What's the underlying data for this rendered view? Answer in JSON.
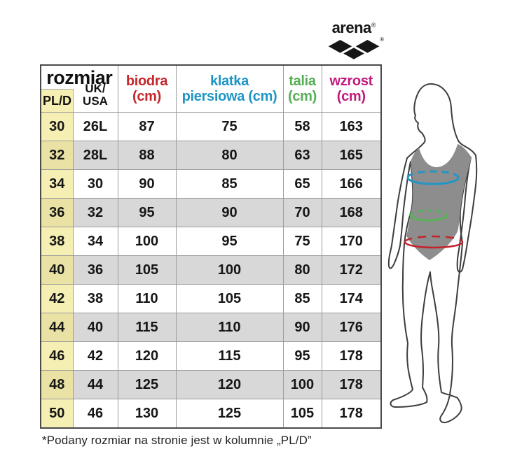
{
  "logo": {
    "brand": "arena",
    "registered": "®"
  },
  "table": {
    "header": {
      "rozmiar": "rozmiar",
      "pl_d": "PL/D",
      "uk_usa_line1": "UK/",
      "uk_usa_line2": "USA",
      "columns": [
        {
          "line1": "biodra",
          "line2": "(cm)",
          "color": "#c5262b"
        },
        {
          "line1": "klatka",
          "line2": "piersiowa (cm)",
          "color": "#1e95c5"
        },
        {
          "line1": "talia",
          "line2": "(cm)",
          "color": "#56ae57"
        },
        {
          "line1": "wzrost",
          "line2": "(cm)",
          "color": "#c11a7c"
        }
      ]
    }
  },
  "chart_data": {
    "type": "table",
    "columns": [
      "rozmiar PL/D",
      "rozmiar UK/USA",
      "biodra (cm)",
      "klatka piersiowa (cm)",
      "talia (cm)",
      "wzrost (cm)"
    ],
    "column_keys": [
      "pl-d",
      "uk-usa",
      "biodra",
      "klatka-piersiowa",
      "talia",
      "wzrost"
    ],
    "rows": [
      [
        "30",
        "26L",
        "87",
        "75",
        "58",
        "163"
      ],
      [
        "32",
        "28L",
        "88",
        "80",
        "63",
        "165"
      ],
      [
        "34",
        "30",
        "90",
        "85",
        "65",
        "166"
      ],
      [
        "36",
        "32",
        "95",
        "90",
        "70",
        "168"
      ],
      [
        "38",
        "34",
        "100",
        "95",
        "75",
        "170"
      ],
      [
        "40",
        "36",
        "105",
        "100",
        "80",
        "172"
      ],
      [
        "42",
        "38",
        "110",
        "105",
        "85",
        "174"
      ],
      [
        "44",
        "40",
        "115",
        "110",
        "90",
        "176"
      ],
      [
        "46",
        "42",
        "120",
        "115",
        "95",
        "178"
      ],
      [
        "48",
        "44",
        "125",
        "120",
        "100",
        "178"
      ],
      [
        "50",
        "46",
        "130",
        "125",
        "105",
        "178"
      ]
    ]
  },
  "figure": {
    "measurement_lines": [
      {
        "name": "klatka piersiowa (chest)",
        "color": "#2395c6"
      },
      {
        "name": "talia (waist)",
        "color": "#57b157"
      },
      {
        "name": "biodra (hips)",
        "color": "#c5232b"
      }
    ],
    "swimsuit_color": "#8d8d8d",
    "outline_color": "#3d3d3d"
  },
  "footnote": "*Podany rozmiar na stronie jest w kolumnie „PL/D”",
  "colors": {
    "pld_column_yellow": "#f6efb3",
    "pld_column_yellow_alt": "#e9e2a4",
    "zebra_gray": "#d8d8d8",
    "grid_line": "#9c9c9c",
    "outer_border": "#4a4a4a"
  }
}
